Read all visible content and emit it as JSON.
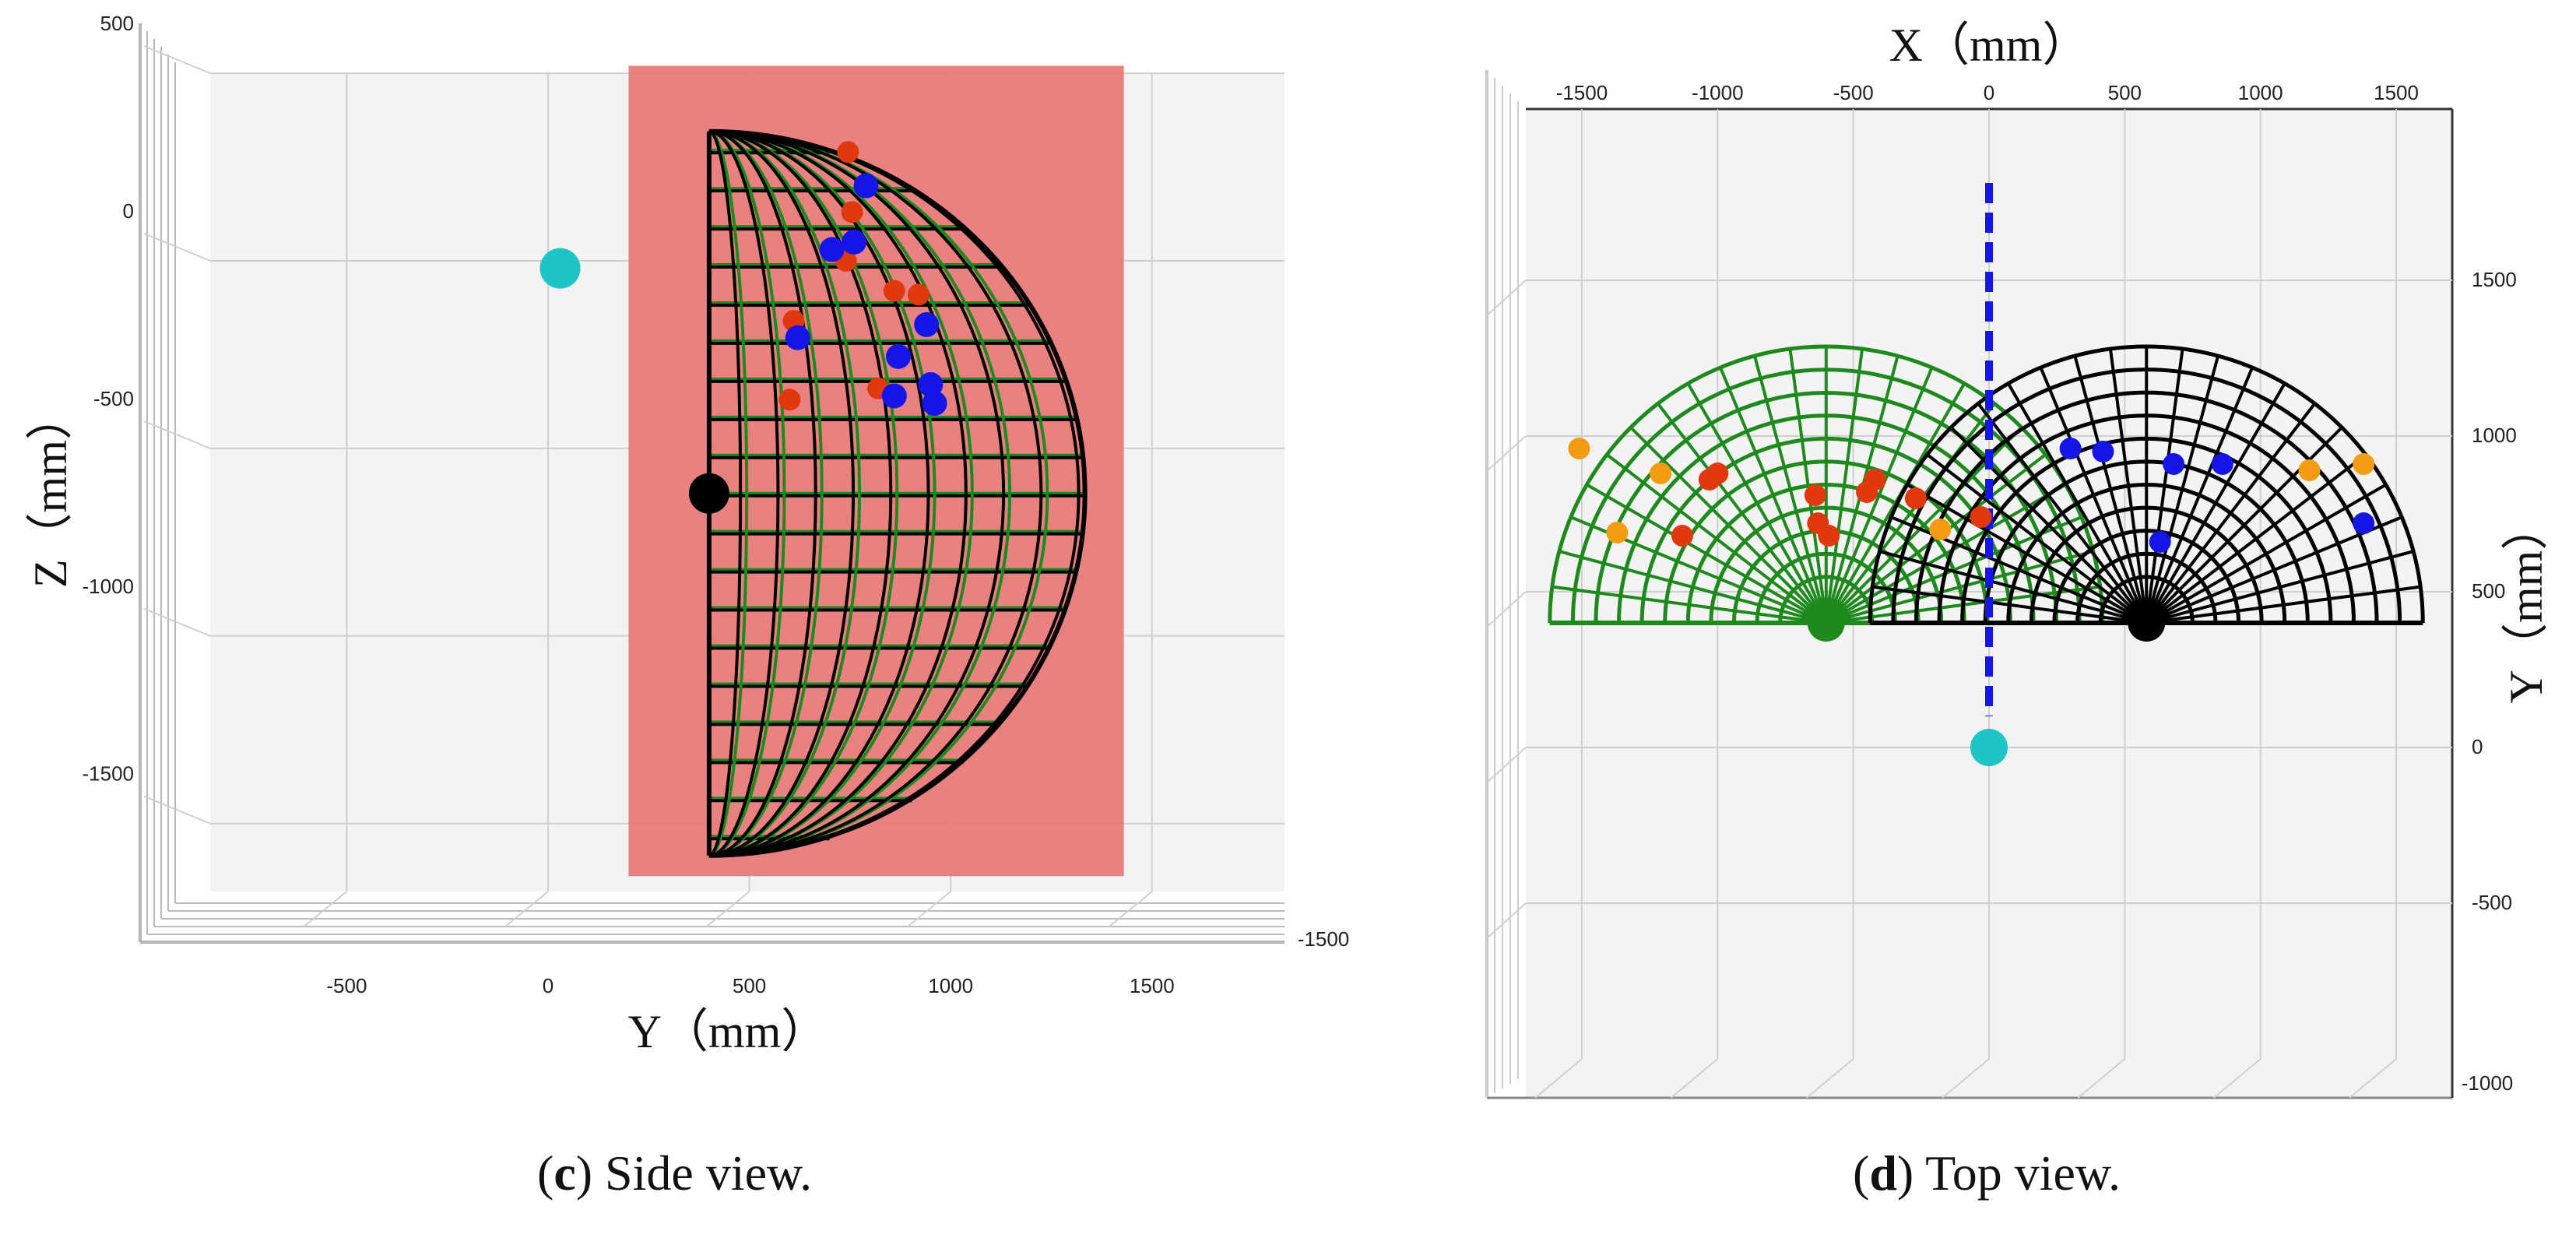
{
  "chart_data": [
    {
      "type": "scatter",
      "caption": {
        "letter": "c",
        "text": ") Side view.",
        "open": "("
      },
      "xlabel": "Y（mm）",
      "ylabel": "Z（mm）",
      "xticks": [
        "-500",
        "0",
        "500",
        "1000",
        "1500"
      ],
      "yticks": [
        "500",
        "0",
        "-500",
        "-1000",
        "-1500"
      ],
      "xlim": [
        -850,
        1850
      ],
      "ylim": [
        -1800,
        550
      ],
      "depth_ticks": "-1500",
      "region": {
        "y": [
          200,
          1430
        ],
        "z": [
          -1640,
          520
        ],
        "color": "#e87a7a"
      },
      "hemisphere": {
        "center_y": 400,
        "center_z": -620,
        "radius": 950
      },
      "sensor_point": {
        "y": 30,
        "z": -20,
        "color": "#1fc4c4"
      },
      "origin_point": {
        "y": 400,
        "z": -620,
        "color": "#000000"
      },
      "red_points": [
        {
          "y": 745,
          "z": 290
        },
        {
          "y": 755,
          "z": 130
        },
        {
          "y": 740,
          "z": 0
        },
        {
          "y": 610,
          "z": -160
        },
        {
          "y": 920,
          "z": -90
        },
        {
          "y": 600,
          "z": -370
        },
        {
          "y": 860,
          "z": -80
        },
        {
          "y": 820,
          "z": -340
        }
      ],
      "blue_points": [
        {
          "y": 790,
          "z": 200
        },
        {
          "y": 705,
          "z": 30
        },
        {
          "y": 760,
          "z": 50
        },
        {
          "y": 940,
          "z": -170
        },
        {
          "y": 620,
          "z": -205
        },
        {
          "y": 870,
          "z": -255
        },
        {
          "y": 860,
          "z": -360
        },
        {
          "y": 950,
          "z": -330
        },
        {
          "y": 960,
          "z": -380
        }
      ],
      "colors": {
        "red": "#e0380f",
        "orange": "#f39c12",
        "blue": "#1515e6",
        "green": "#1e8a1e",
        "black": "#000000"
      }
    },
    {
      "type": "scatter",
      "caption": {
        "letter": "d",
        "text": ") Top view.",
        "open": "("
      },
      "xlabel": "X（mm）",
      "ylabel": "Y（mm）",
      "xticks": [
        "-1500",
        "-1000",
        "-500",
        "0",
        "500",
        "1000",
        "1500"
      ],
      "yticks": [
        "1500",
        "1000",
        "500",
        "0",
        "-500"
      ],
      "xlim": [
        -1720,
        1720
      ],
      "ylim": [
        -1050,
        2000
      ],
      "depth_ticks": "-1000",
      "green_hemisphere": {
        "center_x": -600,
        "center_y": 400,
        "radius": 1030
      },
      "black_hemisphere": {
        "center_x": 580,
        "center_y": 400,
        "radius": 1030
      },
      "divider": {
        "x": 0,
        "y": [
          400,
          2000
        ],
        "color": "#1515e6"
      },
      "sensor_point": {
        "x": 0,
        "y": 0,
        "color": "#1fc4c4"
      },
      "green_origin": {
        "x": -600,
        "y": 400
      },
      "black_origin": {
        "x": 580,
        "y": 400
      },
      "orange_points": [
        {
          "x": -1510,
          "y": 960
        },
        {
          "x": -1210,
          "y": 880
        },
        {
          "x": -1370,
          "y": 690
        },
        {
          "x": 1180,
          "y": 890
        },
        {
          "x": 1380,
          "y": 910
        },
        {
          "x": -180,
          "y": 700
        }
      ],
      "red_points": [
        {
          "x": -1030,
          "y": 860
        },
        {
          "x": -1000,
          "y": 880
        },
        {
          "x": -1130,
          "y": 680
        },
        {
          "x": -640,
          "y": 810
        },
        {
          "x": -630,
          "y": 720
        },
        {
          "x": -590,
          "y": 680
        },
        {
          "x": -450,
          "y": 820
        },
        {
          "x": -420,
          "y": 860
        },
        {
          "x": -270,
          "y": 800
        },
        {
          "x": -30,
          "y": 740
        }
      ],
      "blue_points": [
        {
          "x": 300,
          "y": 960
        },
        {
          "x": 420,
          "y": 950
        },
        {
          "x": 680,
          "y": 910
        },
        {
          "x": 860,
          "y": 910
        },
        {
          "x": 630,
          "y": 660
        },
        {
          "x": 1380,
          "y": 720
        }
      ],
      "colors": {
        "red": "#e0380f",
        "orange": "#f39c12",
        "blue": "#1515e6",
        "green": "#1e8a1e",
        "black": "#000000"
      }
    }
  ]
}
